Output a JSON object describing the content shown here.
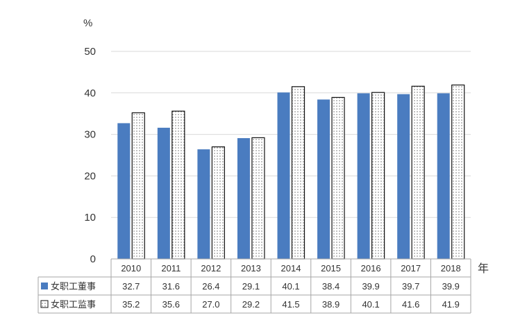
{
  "chart_data": {
    "type": "bar",
    "ylabel": "%",
    "xlabel": "年",
    "ylim": [
      0,
      50
    ],
    "yticks": [
      0,
      10,
      20,
      30,
      40,
      50
    ],
    "grid": true,
    "categories": [
      "2010",
      "2011",
      "2012",
      "2013",
      "2014",
      "2015",
      "2016",
      "2017",
      "2018"
    ],
    "series": [
      {
        "name": "女职工董事",
        "values": [
          32.7,
          31.6,
          26.4,
          29.1,
          40.1,
          38.4,
          39.9,
          39.7,
          39.9
        ],
        "labels": [
          "32.7",
          "31.6",
          "26.4",
          "29.1",
          "40.1",
          "38.4",
          "39.9",
          "39.7",
          "39.9"
        ],
        "color": "#4a7cc0"
      },
      {
        "name": "女职工监事",
        "values": [
          35.2,
          35.6,
          27.0,
          29.2,
          41.5,
          38.9,
          40.1,
          41.6,
          41.9
        ],
        "labels": [
          "35.2",
          "35.6",
          "27.0",
          "29.2",
          "41.5",
          "38.9",
          "40.1",
          "41.6",
          "41.9"
        ],
        "color": "#ffffff",
        "pattern": "dotted"
      }
    ],
    "legend": "data-table"
  }
}
